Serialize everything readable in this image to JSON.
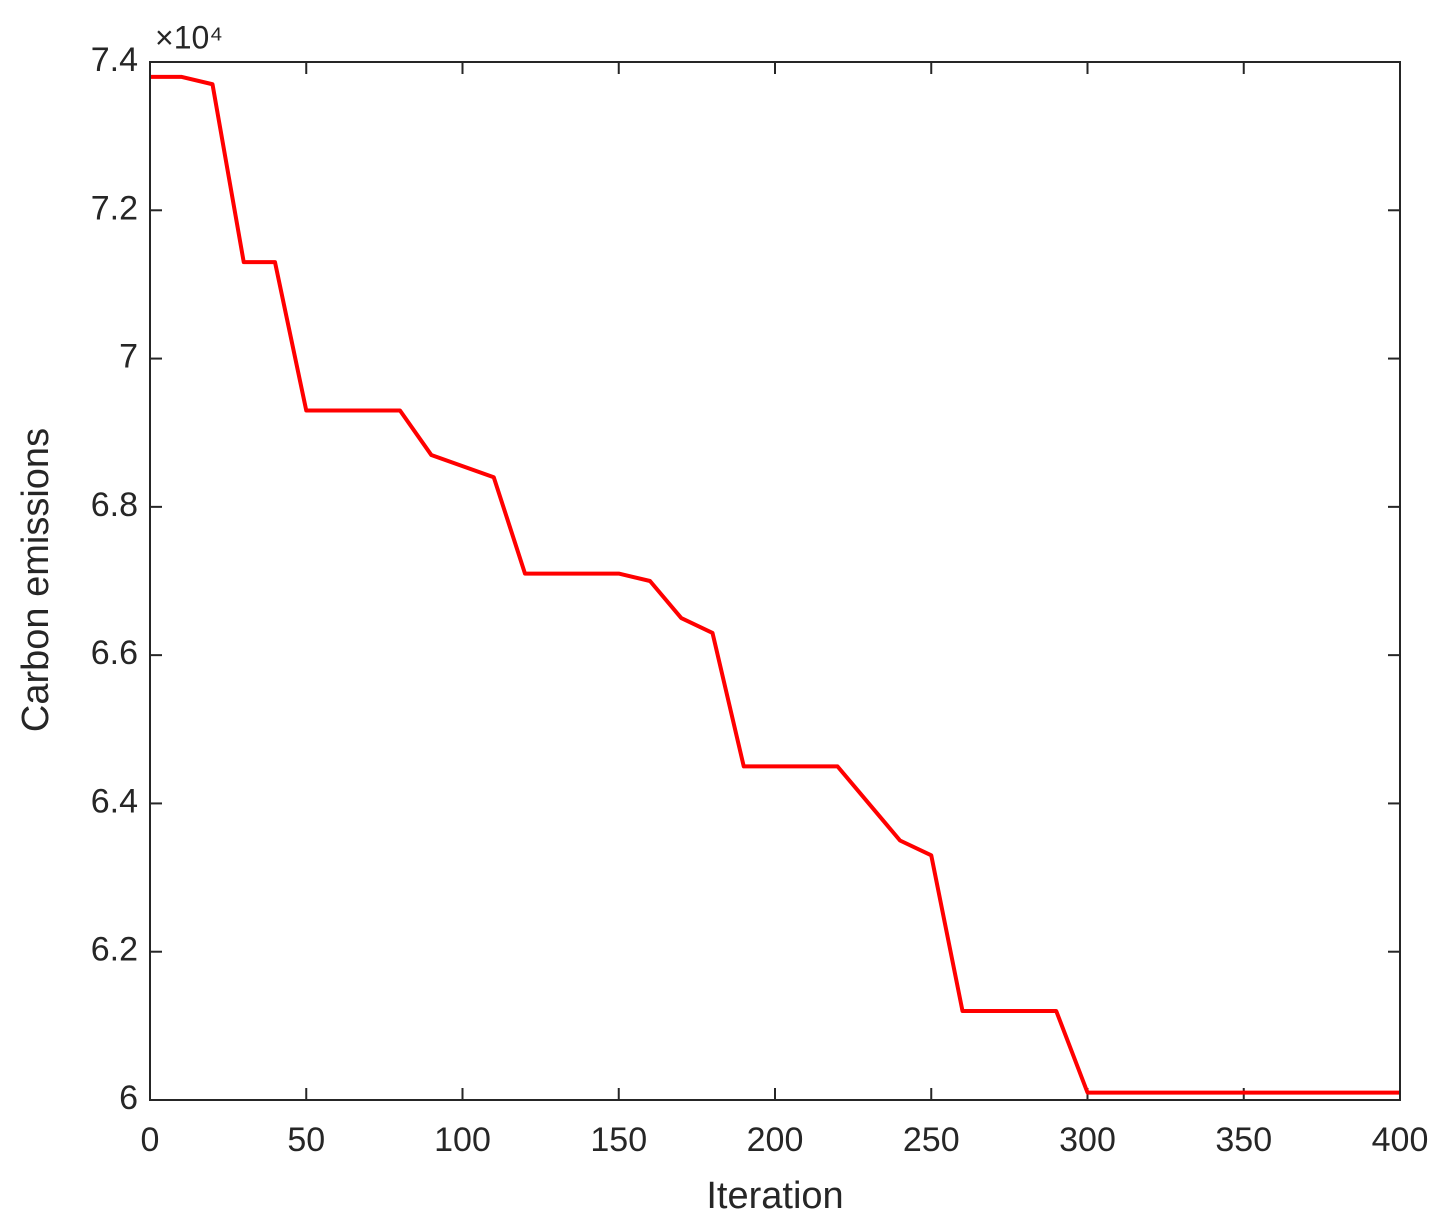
{
  "chart_data": {
    "type": "line",
    "x_label": "Iteration",
    "y_label": "Carbon emissions",
    "y_exponent_label": "×10⁴",
    "x": [
      0,
      10,
      20,
      30,
      40,
      50,
      60,
      70,
      80,
      90,
      100,
      110,
      120,
      130,
      140,
      150,
      160,
      170,
      180,
      190,
      200,
      210,
      220,
      230,
      240,
      250,
      260,
      270,
      280,
      290,
      300,
      310,
      320,
      330,
      340,
      350,
      360,
      370,
      380,
      390,
      400
    ],
    "values": [
      7.38,
      7.38,
      7.37,
      7.13,
      7.13,
      6.93,
      6.93,
      6.93,
      6.93,
      6.87,
      6.855,
      6.84,
      6.71,
      6.71,
      6.71,
      6.71,
      6.7,
      6.65,
      6.63,
      6.45,
      6.45,
      6.45,
      6.45,
      6.4,
      6.35,
      6.33,
      6.12,
      6.12,
      6.12,
      6.12,
      6.01,
      6.01,
      6.01,
      6.01,
      6.01,
      6.01,
      6.01,
      6.01,
      6.01,
      6.01,
      6.01
    ],
    "color": "#ff0000",
    "xlim": [
      0,
      400
    ],
    "xticks": [
      0,
      50,
      100,
      150,
      200,
      250,
      300,
      350,
      400
    ],
    "ylim": [
      6,
      7.4
    ],
    "yticks": [
      6,
      6.2,
      6.4,
      6.6,
      6.8,
      7,
      7.2,
      7.4
    ],
    "grid": false,
    "box": true
  }
}
